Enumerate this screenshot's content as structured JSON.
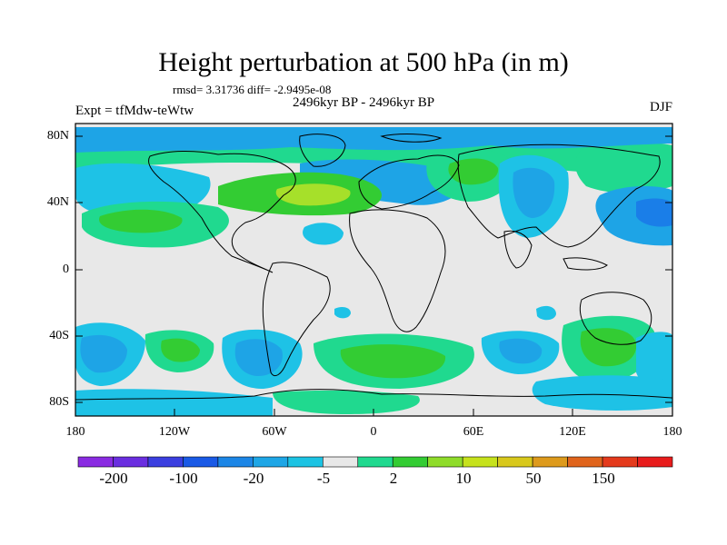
{
  "figure": {
    "title": "Height perturbation at 500 hPa (in m)",
    "stats": "rmsd= 3.31736 diff= -2.9495e-08",
    "period": "2496kyr BP - 2496kyr BP",
    "expt": "Expt = tfMdw-teWtw",
    "season": "DJF"
  },
  "lat_labels": [
    "80N",
    "40N",
    "0",
    "40S",
    "80S"
  ],
  "lon_labels": [
    "180",
    "120W",
    "60W",
    "0",
    "60E",
    "120E",
    "180"
  ],
  "colorbar": {
    "labels": [
      "-200",
      "-100",
      "-20",
      "-5",
      "2",
      "10",
      "50",
      "150"
    ],
    "colors": [
      "#8a2be2",
      "#6a2ee0",
      "#3b3fe0",
      "#1a5ae6",
      "#1c86e6",
      "#1ea6e6",
      "#1cc3e3",
      "#e8e8e8",
      "#20d98f",
      "#33cc33",
      "#8fdc2a",
      "#c6e21c",
      "#d8c81c",
      "#dd9a1c",
      "#e0641c",
      "#e43a1c",
      "#e81c1c"
    ]
  },
  "palette": {
    "ocean_bg": "#e8e8e8",
    "blue_light": "#1ec2e6",
    "blue_mid": "#1ea4e6",
    "blue_dark": "#1a7ee8",
    "green_light": "#20d98f",
    "green_mid": "#33cc33",
    "green_yellow": "#a6e02a"
  }
}
